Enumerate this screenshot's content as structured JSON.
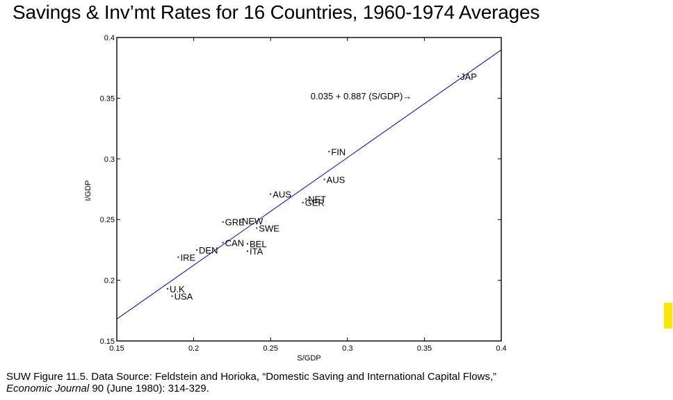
{
  "title": "Savings & Inv’mt Rates for 16 Countries, 1960-1974 Averages",
  "caption": {
    "line1": "SUW Figure 11.5. Data Source: Feldstein and Horioka, “Domestic Saving and International Capital Flows,”",
    "journal": "Economic Journal",
    "line2_rest": " 90 (June 1980): 314-329."
  },
  "marker_color": "#ffe600",
  "chart_data": {
    "type": "scatter",
    "title": "Savings & Inv’mt Rates for 16 Countries, 1960-1974 Averages",
    "xlabel": "S/GDP",
    "ylabel": "I/GDP",
    "xlim": [
      0.15,
      0.4
    ],
    "ylim": [
      0.15,
      0.4
    ],
    "xticks": [
      0.15,
      0.2,
      0.25,
      0.3,
      0.35,
      0.4
    ],
    "yticks": [
      0.15,
      0.2,
      0.25,
      0.3,
      0.35,
      0.4
    ],
    "xtick_labels": [
      "0.15",
      "0.2",
      "0.25",
      "0.3",
      "0.35",
      "0.4"
    ],
    "ytick_labels": [
      "0.15",
      "0.2",
      "0.25",
      "0.3",
      "0.35",
      "0.4"
    ],
    "grid": false,
    "point_color": "#0000cc",
    "line_color": "#0000cc",
    "points": [
      {
        "label": "JAP",
        "x": 0.372,
        "y": 0.368
      },
      {
        "label": "FIN",
        "x": 0.288,
        "y": 0.306
      },
      {
        "label": "AUS",
        "x": 0.285,
        "y": 0.283
      },
      {
        "label": "AUS",
        "x": 0.25,
        "y": 0.271
      },
      {
        "label": "NET",
        "x": 0.273,
        "y": 0.267
      },
      {
        "label": "GER",
        "x": 0.271,
        "y": 0.264
      },
      {
        "label": "GRE",
        "x": 0.219,
        "y": 0.248
      },
      {
        "label": "NEW",
        "x": 0.23,
        "y": 0.249
      },
      {
        "label": "SWE",
        "x": 0.241,
        "y": 0.243
      },
      {
        "label": "CAN",
        "x": 0.219,
        "y": 0.231
      },
      {
        "label": "BEL",
        "x": 0.235,
        "y": 0.23
      },
      {
        "label": "ITA",
        "x": 0.235,
        "y": 0.224
      },
      {
        "label": "DEN",
        "x": 0.202,
        "y": 0.225
      },
      {
        "label": "IRE",
        "x": 0.19,
        "y": 0.219
      },
      {
        "label": "U.K",
        "x": 0.183,
        "y": 0.193
      },
      {
        "label": "USA",
        "x": 0.186,
        "y": 0.187
      }
    ],
    "fit_line": {
      "intercept": 0.035,
      "slope": 0.887
    },
    "annotation": "0.035 + 0.887 (S/GDP)→",
    "annotation_anchor": {
      "x": 0.276,
      "y": 0.349
    }
  }
}
